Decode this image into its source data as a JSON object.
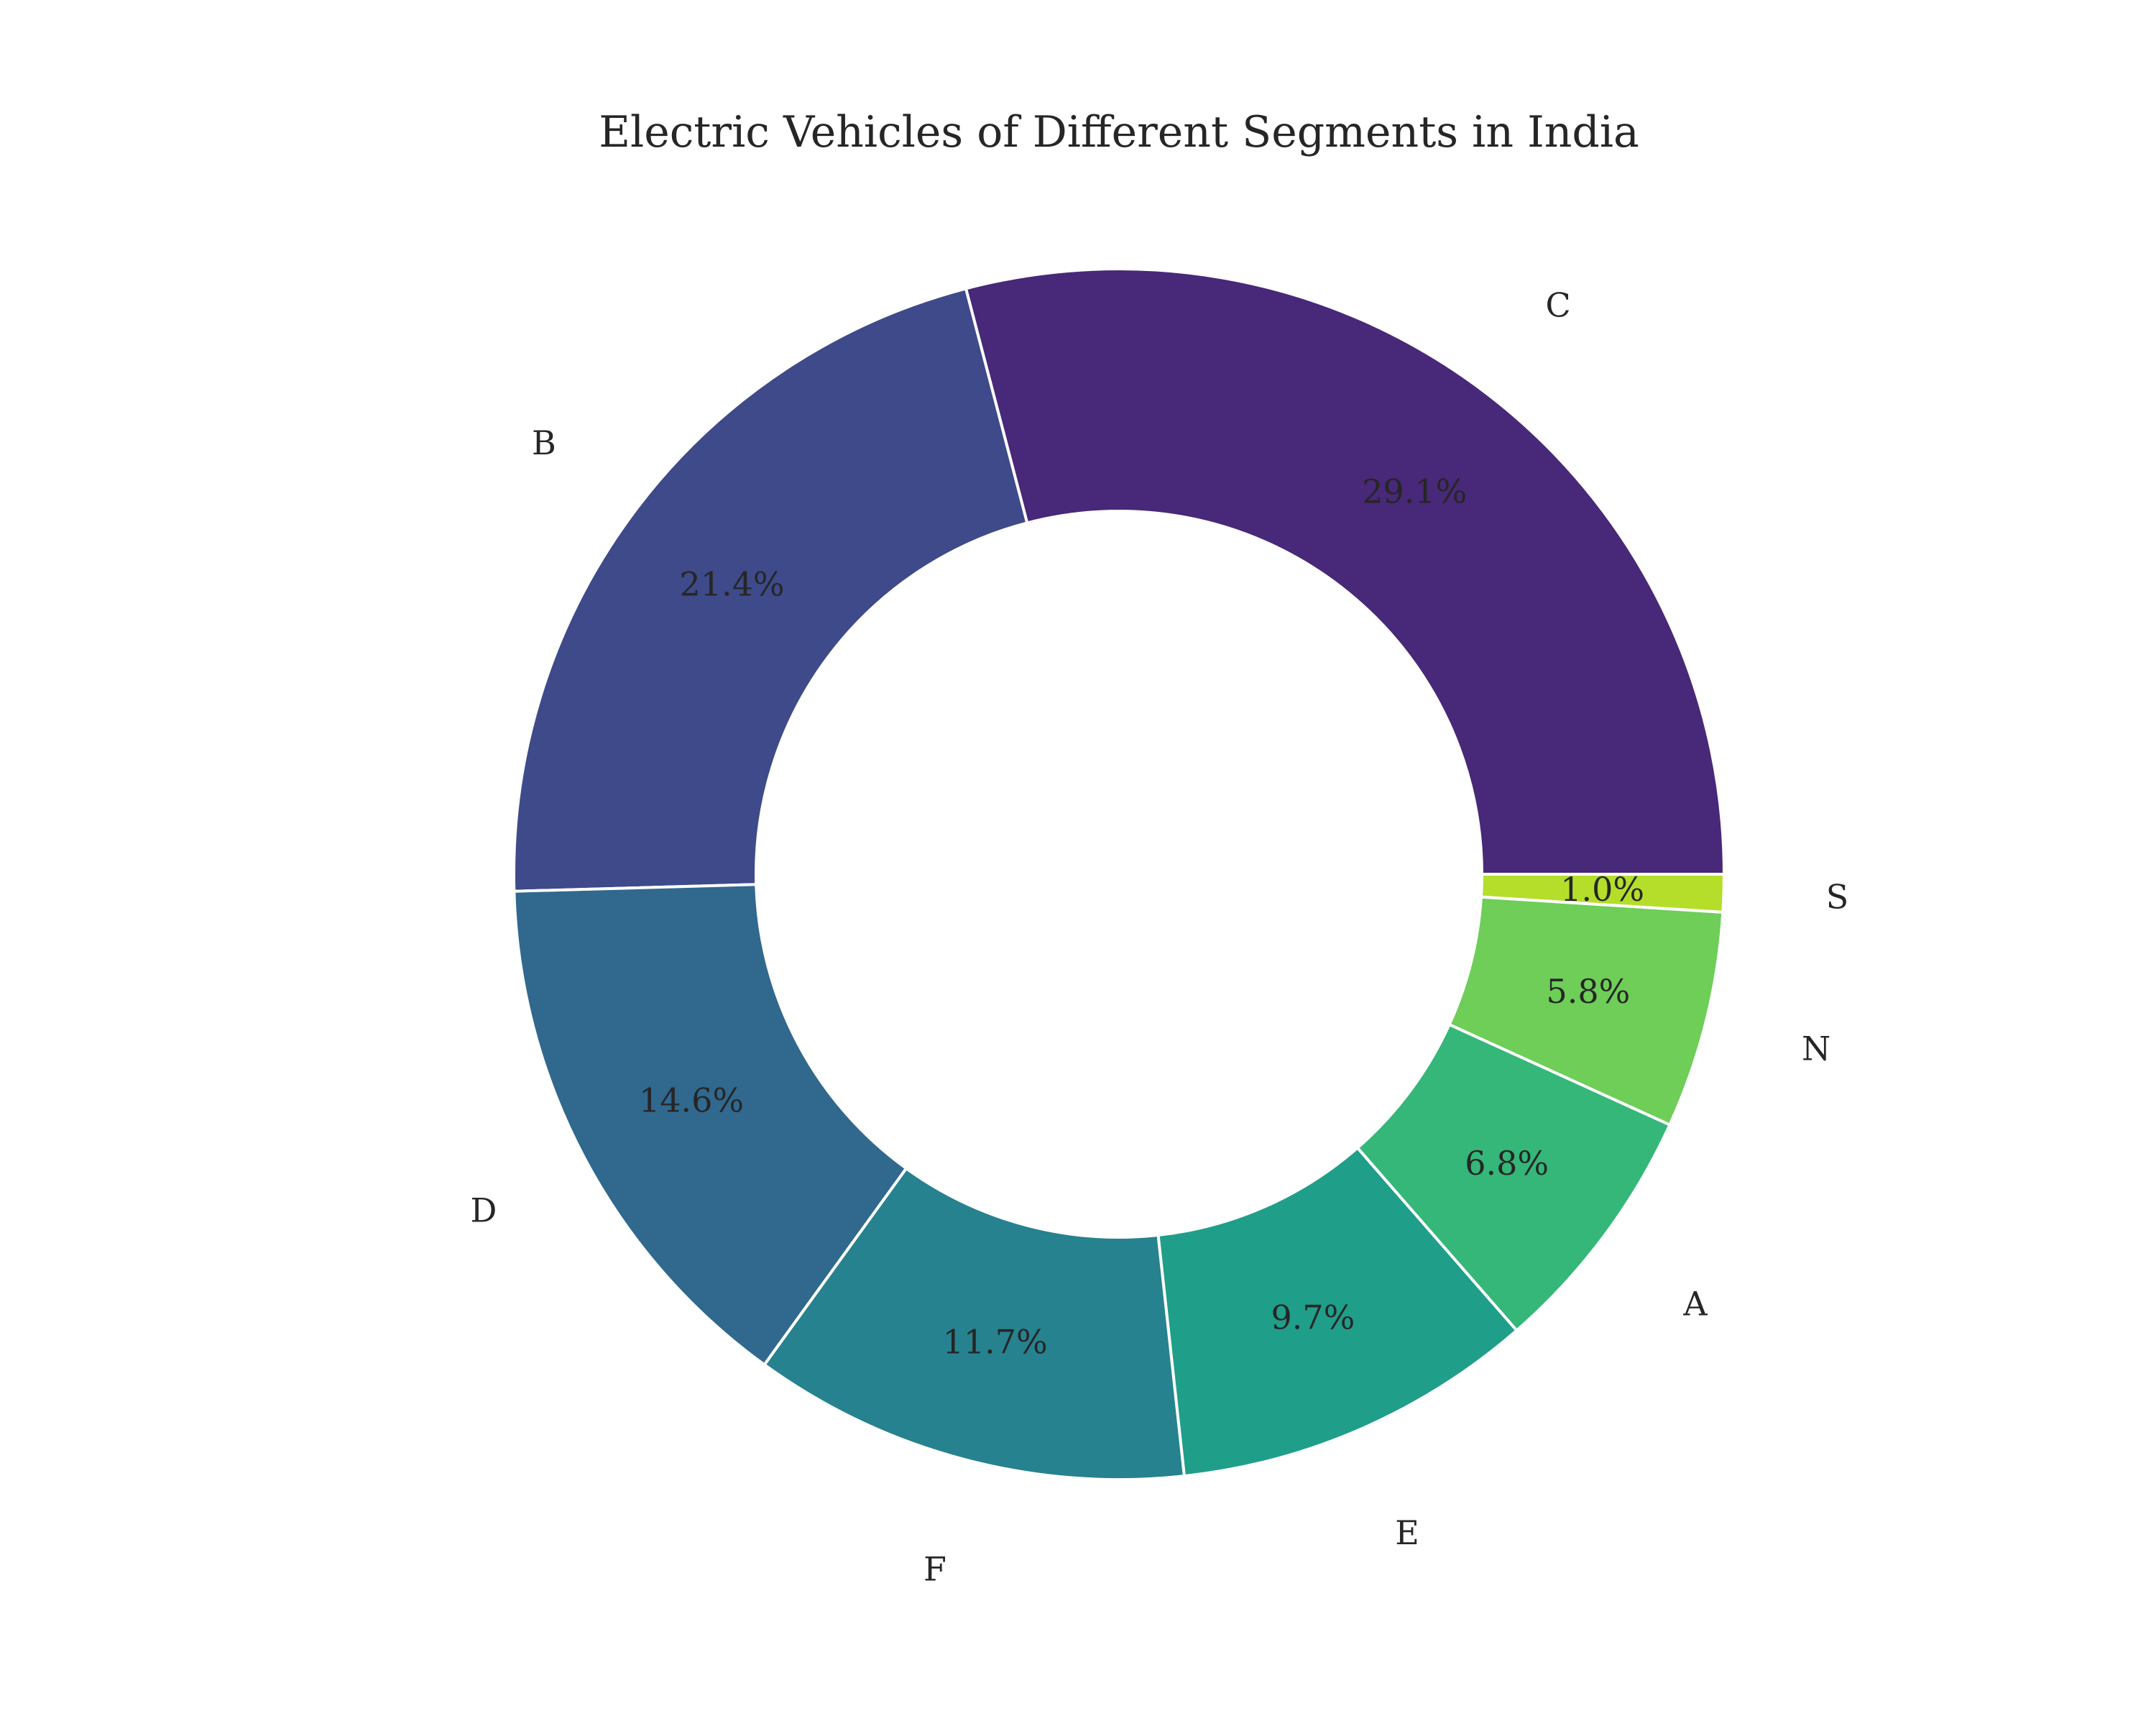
{
  "chart_data": {
    "type": "pie",
    "donut": true,
    "title": "Electric Vehicles of Different Segments in India",
    "start_angle_deg": 0,
    "direction": "counterclockwise",
    "slices": [
      {
        "label": "C",
        "value": 29.1,
        "pct_label": "29.1%",
        "color": "#482878"
      },
      {
        "label": "B",
        "value": 21.4,
        "pct_label": "21.4%",
        "color": "#3e4a89"
      },
      {
        "label": "D",
        "value": 14.6,
        "pct_label": "14.6%",
        "color": "#31688e"
      },
      {
        "label": "F",
        "value": 11.7,
        "pct_label": "11.7%",
        "color": "#26828e"
      },
      {
        "label": "E",
        "value": 9.7,
        "pct_label": "9.7%",
        "color": "#1f9e89"
      },
      {
        "label": "A",
        "value": 6.8,
        "pct_label": "6.8%",
        "color": "#35b779"
      },
      {
        "label": "N",
        "value": 5.8,
        "pct_label": "5.8%",
        "color": "#6ece58"
      },
      {
        "label": "S",
        "value": 1.0,
        "pct_label": "1.0%",
        "color": "#b5de2b"
      }
    ],
    "legend": "none",
    "grid": false
  }
}
